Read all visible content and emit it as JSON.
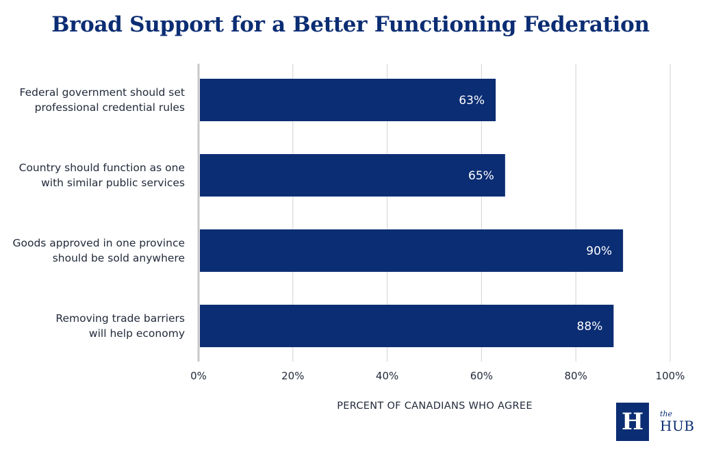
{
  "colors": {
    "bar": "#0b2d73",
    "title": "#0b2d73",
    "grid": "#d9d9d9",
    "text": "#222a3a",
    "bar_label": "#ffffff"
  },
  "chart_data": {
    "type": "bar",
    "orientation": "horizontal",
    "title": "Broad Support for a Better Functioning Federation",
    "xlabel": "PERCENT OF CANADIANS WHO AGREE",
    "ylabel": "",
    "xlim": [
      0,
      100
    ],
    "grid": true,
    "ticks": [
      "0%",
      "20%",
      "40%",
      "60%",
      "80%",
      "100%"
    ],
    "categories": [
      [
        "Federal government should set",
        "professional credential rules"
      ],
      [
        "Country should function as one",
        "with similar public services"
      ],
      [
        "Goods approved in one province",
        "should be sold anywhere"
      ],
      [
        "Removing trade barriers",
        "will help economy"
      ]
    ],
    "values": [
      63,
      65,
      90,
      88
    ],
    "value_labels": [
      "63%",
      "65%",
      "90%",
      "88%"
    ]
  },
  "logo": {
    "mark": "H",
    "the": "the",
    "hub": "HUB"
  }
}
